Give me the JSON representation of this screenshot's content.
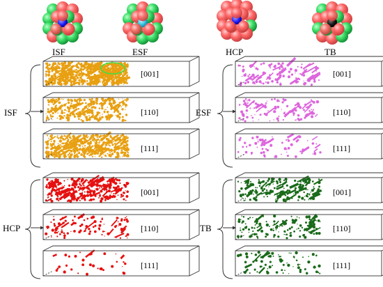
{
  "structures": [
    {
      "label": "ISF",
      "center_color": "#1a1aff",
      "inner_color": "#ff6a6a"
    },
    {
      "label": "ESF",
      "center_color": "#2ec0e0",
      "inner_color": "#ff6a6a"
    },
    {
      "label": "HCP",
      "center_color": "#1a1aff",
      "inner_color": "#ff6a6a"
    },
    {
      "label": "TB",
      "center_color": "#111111",
      "inner_color": "#ff6a6a"
    }
  ],
  "groups": [
    {
      "label": "ISF",
      "color": "#e8a012",
      "panels": [
        {
          "direction": "[001]"
        },
        {
          "direction": "[110]"
        },
        {
          "direction": "[111]"
        }
      ]
    },
    {
      "label": "ESF",
      "color": "#dd66dd",
      "panels": [
        {
          "direction": "[001]"
        },
        {
          "direction": "[110]"
        },
        {
          "direction": "[111]"
        }
      ]
    },
    {
      "label": "HCP",
      "color": "#e61010",
      "panels": [
        {
          "direction": "[001]"
        },
        {
          "direction": "[110]"
        },
        {
          "direction": "[111]"
        }
      ]
    },
    {
      "label": "TB",
      "color": "#1a6a1a",
      "panels": [
        {
          "direction": "[001]"
        },
        {
          "direction": "[110]"
        },
        {
          "direction": "[111]"
        }
      ]
    }
  ],
  "colors": {
    "green_atom": "#3ee06a",
    "red_atom": "#ff6a6a",
    "box_line": "#333333",
    "highlight": "#44dd44"
  }
}
